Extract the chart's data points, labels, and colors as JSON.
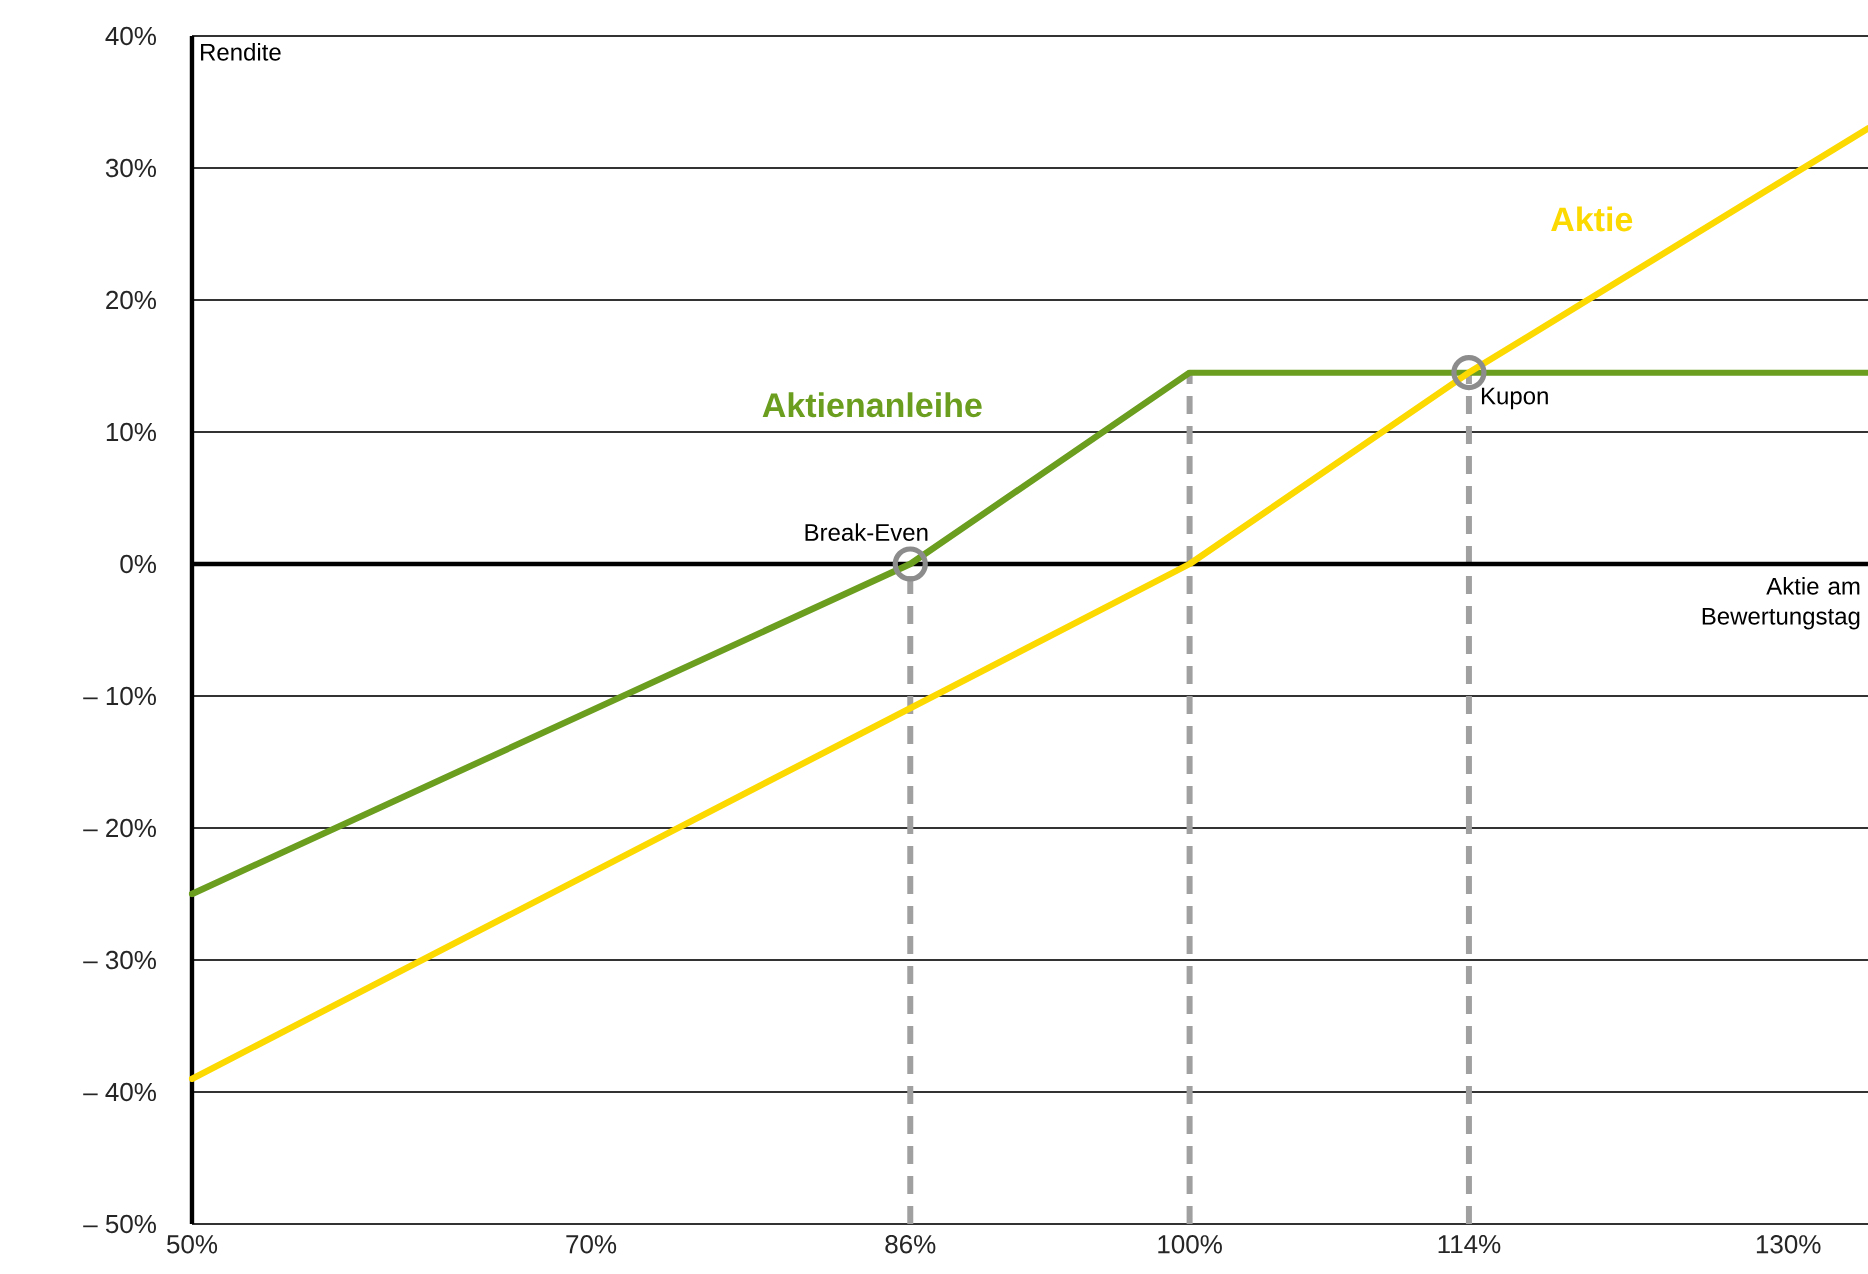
{
  "chart_data": {
    "type": "line",
    "xlabel": "Aktie am Bewertungstag",
    "ylabel": "Rendite",
    "xlim": [
      50,
      134
    ],
    "ylim": [
      -50,
      40
    ],
    "xticks": [
      {
        "value": 50,
        "label": "50%"
      },
      {
        "value": 70,
        "label": "70%"
      },
      {
        "value": 86,
        "label": "86%"
      },
      {
        "value": 100,
        "label": "100%"
      },
      {
        "value": 114,
        "label": "114%"
      },
      {
        "value": 130,
        "label": "130%"
      }
    ],
    "yticks": [
      {
        "value": 40,
        "label": "40%"
      },
      {
        "value": 30,
        "label": "30%"
      },
      {
        "value": 20,
        "label": "20%"
      },
      {
        "value": 10,
        "label": "10%"
      },
      {
        "value": 0,
        "label": "0%"
      },
      {
        "value": -10,
        "label": "– 10%"
      },
      {
        "value": -20,
        "label": "– 20%"
      },
      {
        "value": -30,
        "label": "– 30%"
      },
      {
        "value": -40,
        "label": "– 40%"
      },
      {
        "value": -50,
        "label": "– 50%"
      }
    ],
    "grid": "y",
    "marker": "none",
    "line_style": "solid",
    "series": [
      {
        "name": "Aktienanleihe",
        "color": "#6b9e1f",
        "x": [
          50,
          86,
          100,
          134
        ],
        "values": [
          -25,
          0,
          14.5,
          14.5
        ]
      },
      {
        "name": "Aktie",
        "color": "#fcd900",
        "x": [
          50,
          100,
          114,
          134
        ],
        "values": [
          -39,
          0,
          14.5,
          33
        ]
      }
    ],
    "ref_lines": [
      {
        "axis": "x",
        "value": 86,
        "color": "#a0a0a0",
        "line_style": "dashed"
      },
      {
        "axis": "x",
        "value": 100,
        "color": "#a0a0a0",
        "line_style": "dashed"
      },
      {
        "axis": "x",
        "value": 114,
        "color": "#a0a0a0",
        "line_style": "dashed"
      }
    ],
    "annotations": [
      {
        "text": "Break-Even",
        "x": 86,
        "y": 0
      },
      {
        "text": "Kupon",
        "x": 114,
        "y": 14.5
      }
    ]
  }
}
